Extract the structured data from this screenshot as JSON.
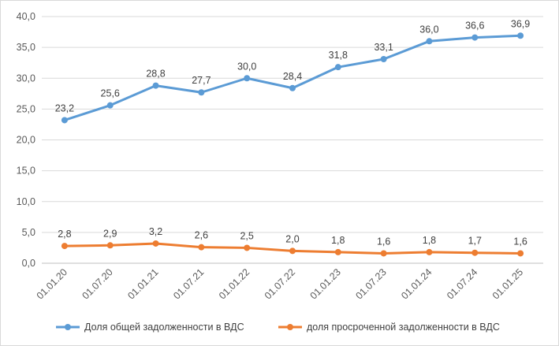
{
  "chart_data": {
    "type": "line",
    "categories": [
      "01.01.20",
      "01.07.20",
      "01.01.21",
      "01.07.21",
      "01.01.22",
      "01.07.22",
      "01.01.23",
      "01.07.23",
      "01.01.24",
      "01.07.24",
      "01.01.25"
    ],
    "ylim": [
      0,
      40
    ],
    "yticks": [
      "0,0",
      "5,0",
      "10,0",
      "15,0",
      "20,0",
      "25,0",
      "30,0",
      "35,0",
      "40,0"
    ],
    "grid": true,
    "legend_position": "bottom",
    "series": [
      {
        "name": "Доля общей задолженности в ВДС",
        "color": "#5b9bd5",
        "values": [
          23.2,
          25.6,
          28.8,
          27.7,
          30.0,
          28.4,
          31.8,
          33.1,
          36.0,
          36.6,
          36.9
        ],
        "labels": [
          "23,2",
          "25,6",
          "28,8",
          "27,7",
          "30,0",
          "28,4",
          "31,8",
          "33,1",
          "36,0",
          "36,6",
          "36,9"
        ]
      },
      {
        "name": "доля просроченной задолженности в ВДС",
        "color": "#ed7d31",
        "values": [
          2.8,
          2.9,
          3.2,
          2.6,
          2.5,
          2.0,
          1.8,
          1.6,
          1.8,
          1.7,
          1.6
        ],
        "labels": [
          "2,8",
          "2,9",
          "3,2",
          "2,6",
          "2,5",
          "2,0",
          "1,8",
          "1,6",
          "1,8",
          "1,7",
          "1,6"
        ]
      }
    ]
  }
}
